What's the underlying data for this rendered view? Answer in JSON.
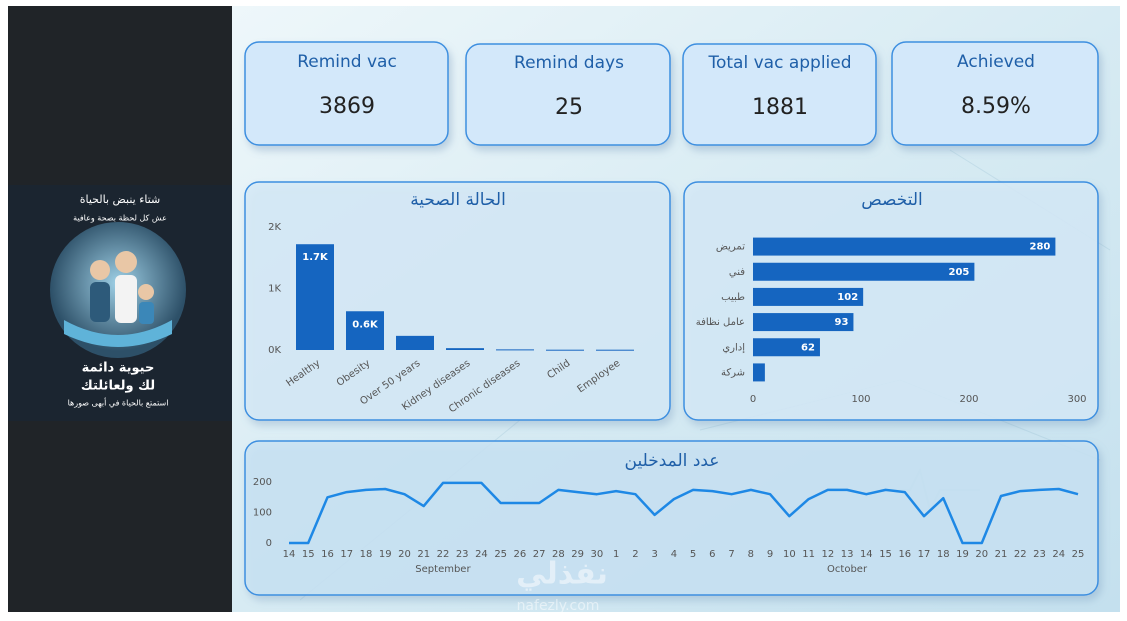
{
  "sidebar": {
    "poster": {
      "headline": "شتاء ينبض بالحياة",
      "tagline": "عش كل لحظة بصحة وعافية",
      "title_line1": "حيوية دائمة",
      "title_line2": "لك ولعائلتك",
      "footer": "استمتع بالحياة في أبهى صورها"
    }
  },
  "kpis": [
    {
      "label": "Remind vac",
      "value": 3869
    },
    {
      "label": "Remind days",
      "value": 25
    },
    {
      "label": "Total vac applied",
      "value": 1881
    },
    {
      "label": "Achieved",
      "value": 8.59,
      "value_label": "8.59%"
    }
  ],
  "watermark": {
    "brand": "نفذلي",
    "site": "nafezly.com"
  },
  "chart_data": [
    {
      "type": "bar",
      "title": "الحالة الصحية",
      "categories": [
        "Healthy",
        "Obesity",
        "Over 50 years",
        "Kidney diseases",
        "Chronic diseases",
        "Child",
        "Employee"
      ],
      "values": [
        1720,
        630,
        230,
        30,
        10,
        5,
        5
      ],
      "value_labels": [
        "1.7K",
        "0.6K",
        null,
        null,
        null,
        null,
        null
      ],
      "color": "#1565c0",
      "ylim": [
        0,
        2000
      ],
      "yticks": [
        {
          "value": 0,
          "label": "0K"
        },
        {
          "value": 1000,
          "label": "1K"
        },
        {
          "value": 2000,
          "label": "2K"
        }
      ],
      "grid": false
    },
    {
      "type": "bar",
      "horizontal": true,
      "title": "التخصص",
      "categories": [
        "تمريض",
        "فني",
        "طبيب",
        "عامل نظافة",
        "إداري",
        "شركة"
      ],
      "values": [
        280,
        205,
        102,
        93,
        62,
        11
      ],
      "value_labels": [
        "280",
        "205",
        "102",
        "93",
        "62",
        null
      ],
      "color": "#1565c0",
      "xlim": [
        0,
        300
      ],
      "xticks": [
        0,
        100,
        200,
        300
      ],
      "grid": false
    },
    {
      "type": "line",
      "title": "عدد المدخلين",
      "categories": [
        "14",
        "15",
        "16",
        "17",
        "18",
        "19",
        "20",
        "21",
        "22",
        "23",
        "24",
        "25",
        "26",
        "27",
        "28",
        "29",
        "30",
        "1",
        "2",
        "3",
        "4",
        "5",
        "6",
        "7",
        "8",
        "9",
        "10",
        "11",
        "12",
        "13",
        "14",
        "15",
        "16",
        "17",
        "18",
        "19",
        "20",
        "21",
        "22",
        "23",
        "24",
        "25"
      ],
      "months": [
        "September",
        "October"
      ],
      "values": [
        0,
        0,
        150,
        167,
        174,
        177,
        160,
        121,
        197,
        197,
        197,
        131,
        131,
        131,
        174,
        167,
        160,
        170,
        160,
        92,
        144,
        174,
        170,
        160,
        174,
        160,
        88,
        144,
        174,
        174,
        160,
        174,
        167,
        88,
        147,
        0,
        0,
        154,
        170,
        174,
        177,
        160
      ],
      "color": "#1e88e5",
      "ylim": [
        0,
        200
      ],
      "yticks": [
        0,
        100,
        200
      ],
      "grid": false
    }
  ]
}
